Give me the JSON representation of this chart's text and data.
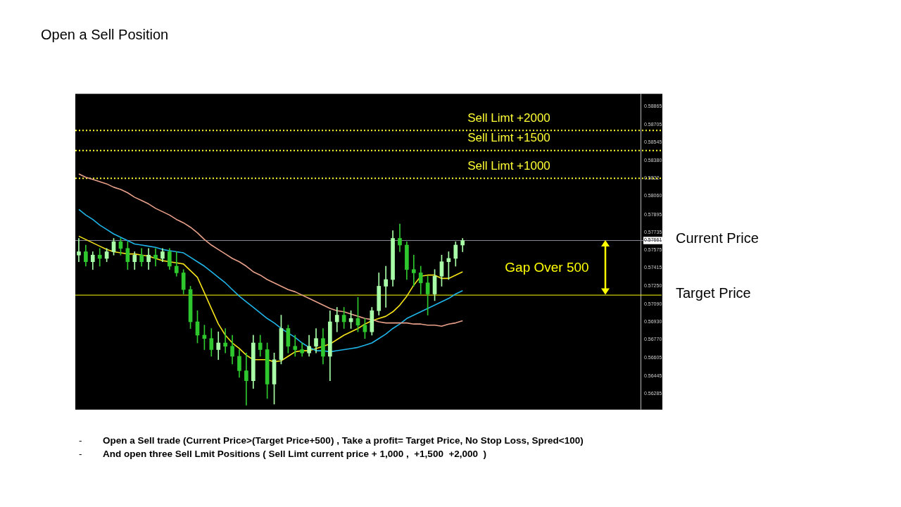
{
  "chart_data": {
    "type": "candlestick",
    "title": "Open a Sell Position",
    "categories": [
      null,
      null,
      null,
      null,
      null,
      null,
      null,
      null,
      null,
      null,
      null,
      null,
      null,
      null,
      null,
      null,
      null,
      null,
      null,
      null,
      null,
      null,
      null,
      null,
      null,
      null,
      null,
      null,
      null,
      null,
      null,
      null,
      null,
      null,
      null,
      null,
      null,
      null,
      null,
      null,
      null,
      null,
      null,
      null,
      null,
      null,
      null,
      null,
      null,
      null,
      null,
      null,
      null,
      null,
      null,
      null,
      null,
      null,
      null,
      null,
      null,
      null,
      null,
      null,
      null,
      null,
      null,
      null,
      null,
      null,
      null,
      null,
      null,
      null,
      null,
      null,
      null,
      null,
      null,
      null,
      null
    ],
    "series": [
      {
        "type": "line",
        "color": "#e8a08a",
        "values": [
          0.5826,
          0.5823,
          0.5821,
          0.5819,
          0.5817,
          0.5814,
          0.5812,
          0.5809,
          0.5805,
          0.5802,
          0.5799,
          0.5795,
          0.5792,
          0.5789,
          0.5785,
          0.5782,
          0.5778,
          0.5773,
          0.5767,
          0.5762,
          0.5758,
          0.5754,
          0.575,
          0.5747,
          0.5743,
          0.5738,
          0.5735,
          0.5731,
          0.5728,
          0.5725,
          0.5722,
          0.572,
          0.5717,
          0.5714,
          0.5711,
          0.5708,
          0.5705,
          0.5703,
          0.5702,
          0.57,
          0.5698,
          0.5696,
          0.5695,
          0.5693,
          0.5692,
          0.5692,
          0.5692,
          0.5692,
          0.5691,
          0.5691,
          0.569,
          0.569,
          0.5689,
          0.5691,
          0.5692,
          0.5694,
          null,
          null,
          null,
          null,
          null,
          null,
          null,
          null,
          null,
          null,
          null,
          null,
          null,
          null,
          null,
          null,
          null,
          null,
          null,
          null,
          null,
          null,
          null,
          null,
          null
        ]
      },
      {
        "type": "line",
        "color": "#1fb5e8",
        "values": [
          0.5794,
          0.5789,
          0.5785,
          0.578,
          0.5776,
          0.5772,
          0.5769,
          0.5766,
          0.5763,
          0.5762,
          0.5761,
          0.576,
          0.5758,
          0.5757,
          0.5756,
          0.5755,
          0.5751,
          0.5747,
          0.5743,
          0.5738,
          0.5733,
          0.5728,
          0.5722,
          0.5716,
          0.5711,
          0.5706,
          0.5701,
          0.5696,
          0.5692,
          0.5687,
          0.5683,
          0.5679,
          0.5674,
          0.567,
          0.5667,
          0.5667,
          0.5666,
          0.5667,
          0.5668,
          0.5669,
          0.567,
          0.5672,
          0.5674,
          0.5678,
          0.5682,
          0.5687,
          0.5691,
          0.5696,
          0.5699,
          0.5702,
          0.5705,
          0.5708,
          0.5711,
          0.5714,
          0.5718,
          0.5721,
          null,
          null,
          null,
          null,
          null,
          null,
          null,
          null,
          null,
          null,
          null,
          null,
          null,
          null,
          null,
          null,
          null,
          null,
          null,
          null,
          null,
          null,
          null,
          null,
          null
        ]
      },
      {
        "type": "line",
        "color": "#f5e31a",
        "values": [
          0.577,
          0.5767,
          0.5764,
          0.5761,
          0.5758,
          0.5756,
          0.5755,
          0.5754,
          0.5754,
          0.5753,
          0.5752,
          0.575,
          0.5748,
          0.5747,
          0.5746,
          0.5745,
          0.5739,
          0.5733,
          0.5719,
          0.5705,
          0.5691,
          0.5681,
          0.5674,
          0.5669,
          0.5663,
          0.5659,
          0.5659,
          0.5659,
          0.5657,
          0.5658,
          0.5662,
          0.5666,
          0.5667,
          0.5667,
          0.5669,
          0.5671,
          0.5673,
          0.5677,
          0.5681,
          0.5684,
          0.5687,
          0.5691,
          0.5694,
          0.5696,
          0.5698,
          0.5702,
          0.5708,
          0.5716,
          0.5726,
          0.5734,
          0.5735,
          0.5735,
          0.5732,
          0.5732,
          0.5735,
          0.5738,
          null,
          null,
          null,
          null,
          null,
          null,
          null,
          null,
          null,
          null,
          null,
          null,
          null,
          null,
          null,
          null,
          null,
          null,
          null,
          null,
          null,
          null,
          null,
          null,
          null
        ]
      },
      {
        "colors": [
          "#a8ffa8",
          "#2ec82e",
          "#a8ffa8",
          "#2ec82e",
          "#a8ffa8",
          "#a8ffa8",
          "#2ec82e",
          "#2ec82e",
          "#a8ffa8",
          "#2ec82e",
          "#a8ffa8",
          "#2ec82e",
          "#a8ffa8",
          "#2ec82e",
          "#2ec82e",
          "#2ec82e",
          "#2ec82e",
          "#2ec82e",
          "#2ec82e",
          "#2ec82e",
          "#a8ffa8",
          "#2ec82e",
          "#2ec82e",
          "#2ec82e",
          "#2ec82e",
          "#a8ffa8",
          "#2ec82e",
          "#2ec82e",
          "#a8ffa8",
          "#a8ffa8",
          "#2ec82e",
          "#2ec82e",
          "#2ec82e",
          "#a8ffa8",
          "#a8ffa8",
          "#2ec82e",
          "#a8ffa8",
          "#a8ffa8",
          "#2ec82e",
          "#a8ffa8",
          "#2ec82e",
          "#2ec82e",
          "#a8ffa8",
          "#a8ffa8",
          "#a8ffa8",
          "#a8ffa8",
          "#2ec82e",
          "#2ec82e",
          "#2ec82e",
          "#2ec82e",
          "#2ec82e",
          "#a8ffa8",
          "#a8ffa8",
          "#a8ffa8",
          "#a8ffa8",
          "#a8ffa8",
          null,
          null,
          null,
          null,
          null,
          null,
          null,
          null,
          null,
          null,
          null,
          null,
          null,
          null,
          null,
          null,
          null,
          null,
          null,
          null,
          null,
          null,
          null,
          null,
          null
        ],
        "ohlc": [
          [
            0.5753,
            0.5768,
            0.5747,
            0.5756
          ],
          [
            0.5756,
            0.5762,
            0.5743,
            0.5747
          ],
          [
            0.5747,
            0.5756,
            0.574,
            0.5753
          ],
          [
            0.5753,
            0.5759,
            0.5743,
            0.575
          ],
          [
            0.575,
            0.5759,
            0.5747,
            0.5756
          ],
          [
            0.5756,
            0.5768,
            0.5753,
            0.5765
          ],
          [
            0.5765,
            0.5768,
            0.5753,
            0.5759
          ],
          [
            0.5759,
            0.5765,
            0.574,
            0.5747
          ],
          [
            0.5747,
            0.5756,
            0.574,
            0.5753
          ],
          [
            0.5753,
            0.5759,
            0.5743,
            0.5747
          ],
          [
            0.5747,
            0.5759,
            0.574,
            0.5753
          ],
          [
            0.5753,
            0.5759,
            0.5743,
            0.575
          ],
          [
            0.575,
            0.5759,
            0.5747,
            0.5756
          ],
          [
            0.5756,
            0.5759,
            0.574,
            0.5743
          ],
          [
            0.5743,
            0.5756,
            0.5734,
            0.5737
          ],
          [
            0.5737,
            0.574,
            0.5718,
            0.5722
          ],
          [
            0.5722,
            0.5725,
            0.5687,
            0.5693
          ],
          [
            0.5693,
            0.5703,
            0.5674,
            0.5681
          ],
          [
            0.5681,
            0.569,
            0.5668,
            0.5678
          ],
          [
            0.5678,
            0.5687,
            0.5662,
            0.5668
          ],
          [
            0.5668,
            0.5684,
            0.5659,
            0.5674
          ],
          [
            0.5674,
            0.5687,
            0.5665,
            0.5671
          ],
          [
            0.5671,
            0.5681,
            0.5655,
            0.5662
          ],
          [
            0.5662,
            0.5668,
            0.5643,
            0.5649
          ],
          [
            0.5649,
            0.5665,
            0.5618,
            0.564
          ],
          [
            0.564,
            0.5681,
            0.5633,
            0.5674
          ],
          [
            0.5674,
            0.5681,
            0.5662,
            0.5668
          ],
          [
            0.5668,
            0.5674,
            0.5624,
            0.5637
          ],
          [
            0.5637,
            0.5665,
            0.5619,
            0.5659
          ],
          [
            0.5659,
            0.5699,
            0.5655,
            0.5687
          ],
          [
            0.5687,
            0.569,
            0.5665,
            0.5671
          ],
          [
            0.5671,
            0.5681,
            0.5662,
            0.5668
          ],
          [
            0.5668,
            0.5674,
            0.5662,
            0.5665
          ],
          [
            0.5665,
            0.5681,
            0.5662,
            0.5671
          ],
          [
            0.5671,
            0.5687,
            0.5665,
            0.5678
          ],
          [
            0.5678,
            0.5687,
            0.5655,
            0.5662
          ],
          [
            0.5662,
            0.5703,
            0.564,
            0.5693
          ],
          [
            0.5693,
            0.5706,
            0.5684,
            0.5699
          ],
          [
            0.5699,
            0.5706,
            0.5687,
            0.5693
          ],
          [
            0.5693,
            0.5703,
            0.5687,
            0.5696
          ],
          [
            0.5696,
            0.5715,
            0.5684,
            0.569
          ],
          [
            0.569,
            0.5696,
            0.5678,
            0.5684
          ],
          [
            0.5684,
            0.5706,
            0.5681,
            0.5703
          ],
          [
            0.5703,
            0.5737,
            0.5699,
            0.5725
          ],
          [
            0.5725,
            0.5743,
            0.5706,
            0.5731
          ],
          [
            0.5731,
            0.5775,
            0.5725,
            0.5768
          ],
          [
            0.5768,
            0.5781,
            0.5756,
            0.5762
          ],
          [
            0.5762,
            0.5765,
            0.5731,
            0.574
          ],
          [
            0.574,
            0.5753,
            0.5725,
            0.5737
          ],
          [
            0.5737,
            0.5743,
            0.5718,
            0.5728
          ],
          [
            0.5728,
            0.5734,
            0.5699,
            0.5718
          ],
          [
            0.5718,
            0.574,
            0.5712,
            0.5734
          ],
          [
            0.5734,
            0.5753,
            0.5725,
            0.5747
          ],
          [
            0.5747,
            0.5756,
            0.5731,
            0.575
          ],
          [
            0.575,
            0.5765,
            0.5743,
            0.5762
          ],
          [
            0.5762,
            0.5768,
            0.5756,
            0.5766
          ],
          null,
          null,
          null,
          null,
          null,
          null,
          null,
          null,
          null,
          null,
          null,
          null,
          null,
          null,
          null,
          null,
          null,
          null,
          null,
          null,
          null,
          null,
          null,
          null,
          null
        ]
      }
    ],
    "ylim": [
      0.5614,
      0.5898
    ],
    "yticks": [
      0.58865,
      0.58705,
      0.58545,
      {
        "value": 0.5838,
        "label": "0.58380"
      },
      0.5822,
      {
        "value": 0.5806,
        "label": "0.58060"
      },
      0.57895,
      0.57735,
      {
        "value": 0.57661,
        "label": "0.57661"
      },
      0.57575,
      0.57415,
      {
        "value": 0.5725,
        "label": "0.57250"
      },
      {
        "value": 0.5709,
        "label": "0.57090"
      },
      {
        "value": 0.5693,
        "label": "0.56930"
      },
      {
        "value": 0.5677,
        "label": "0.56770"
      },
      0.56605,
      0.56445,
      0.56285
    ],
    "ref_lines": [
      {
        "axis": "y",
        "value": 0.5865,
        "label": "Sell Limt +2000",
        "color": "#ffff33",
        "line_style": "dotted"
      },
      {
        "axis": "y",
        "value": 0.5847,
        "label": "Sell Limt +1500",
        "color": "#ffff33",
        "line_style": "dotted"
      },
      {
        "axis": "y",
        "value": 0.5822,
        "label": "Sell Limt +1000",
        "color": "#ffff33",
        "line_style": "dotted"
      },
      {
        "axis": "y",
        "value": 0.57661,
        "label": "Current Price",
        "color": "#8a8a99",
        "line_style": "solid"
      },
      {
        "axis": "y",
        "value": 0.5717,
        "label": "Target Price",
        "color": "#ffff00",
        "line_style": "solid"
      }
    ],
    "annotations": [
      "Gap Over 500",
      "- Open a Sell trade (Current Price>(Target Price+500) , Take a profit= Target Price, No Stop Loss, Spred<100)",
      "- And open three Sell Lmit Positions ( Sell Limt current price + 1,000 ,  +1,500  +2,000  )"
    ],
    "tick_labels": "y",
    "grid": false,
    "legend": false
  }
}
